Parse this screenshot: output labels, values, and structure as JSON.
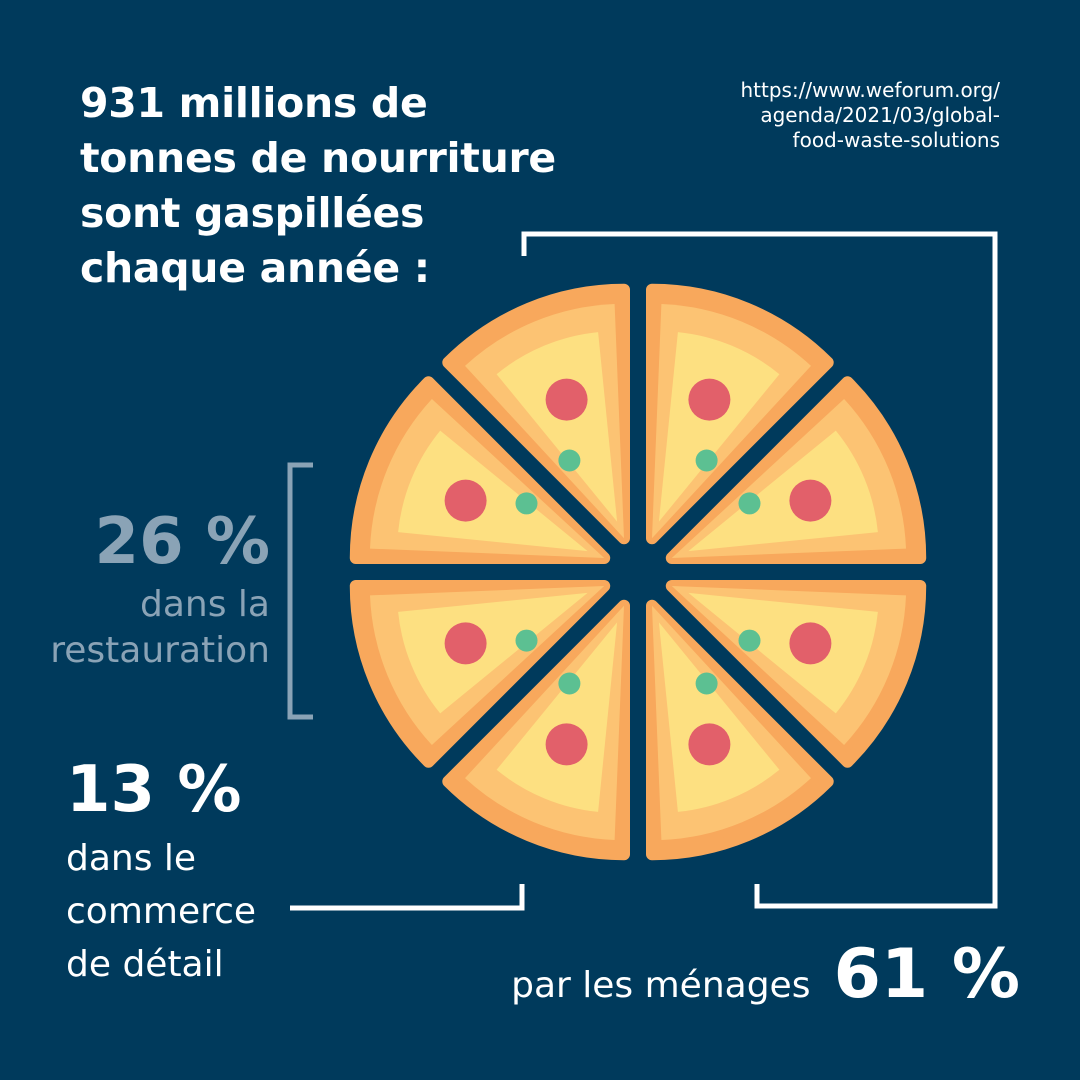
{
  "title_lines": [
    "931 millions de",
    "tonnes de nourriture",
    "sont gaspillées",
    "chaque année :"
  ],
  "source_lines": [
    "https://www.weforum.org/",
    "agenda/2021/03/global-",
    "food-waste-solutions"
  ],
  "stats": {
    "restaurant": {
      "value": "26 %",
      "label_lines": [
        "dans la",
        "restauration"
      ]
    },
    "retail": {
      "value": "13 %",
      "label_lines": [
        "dans le",
        "commerce",
        "de détail"
      ]
    },
    "households": {
      "value": "61 %",
      "label": "par les ménages"
    }
  },
  "colors": {
    "background": "#003a5c",
    "crust_dark": "#f8a85c",
    "crust_light": "#fcc373",
    "cheese": "#fde081",
    "pepperoni": "#e2606a",
    "olive": "#5cc092",
    "bracket_white": "#ffffff",
    "bracket_muted": "#8aa3b6"
  },
  "icons": [
    "pizza-icon",
    "pepperoni-icon",
    "olive-icon"
  ]
}
